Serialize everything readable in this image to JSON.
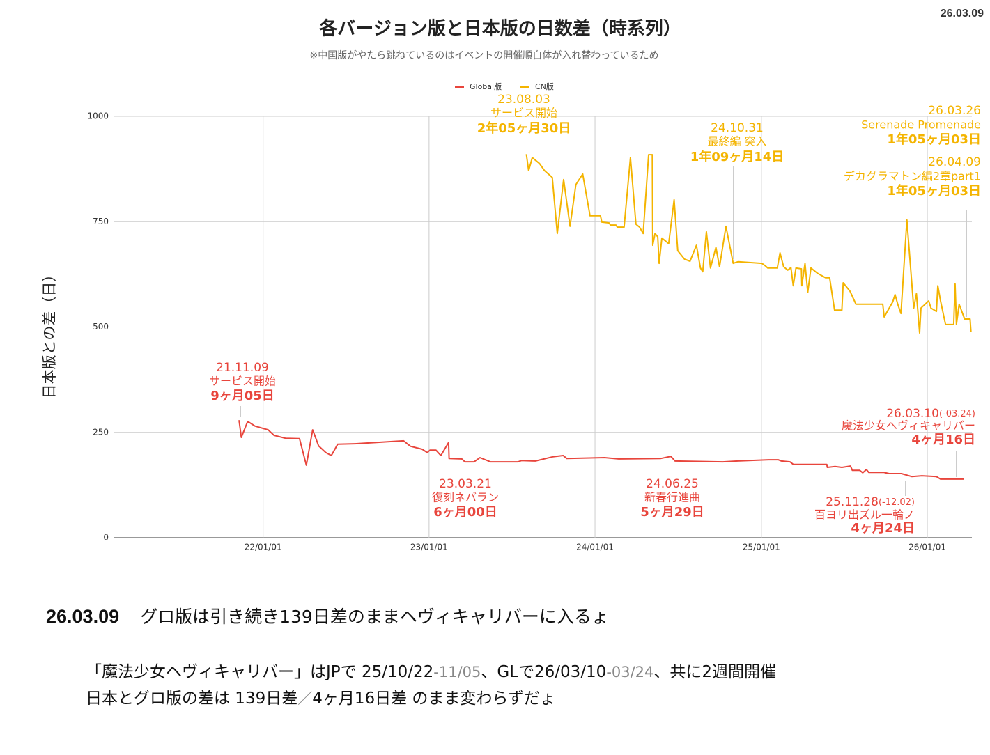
{
  "chart_data": {
    "type": "line",
    "title": "各バージョン版と日本版の日数差（時系列）",
    "subtitle": "※中国版がやたら跳ねているのはイベントの開催順自体が入れ替わっているため",
    "y_label": "日本版との差（日）",
    "stamp": "26.03.09",
    "ylim": [
      0,
      1000
    ],
    "yticks": [
      0,
      250,
      500,
      750,
      1000
    ],
    "xlim": [
      "2021-02-06",
      "2026-04-09"
    ],
    "xticks": [
      {
        "value": "2022-01-01",
        "label": "22/01/01"
      },
      {
        "value": "2023-01-01",
        "label": "23/01/01"
      },
      {
        "value": "2024-01-01",
        "label": "24/01/01"
      },
      {
        "value": "2025-01-01",
        "label": "25/01/01"
      },
      {
        "value": "2026-01-01",
        "label": "26/01/01"
      }
    ],
    "grid": true,
    "legend": "top",
    "series": [
      {
        "name": "Global版",
        "color": "#e8453c",
        "x": [
          "2021-11-09",
          "2021-11-14",
          "2021-11-28",
          "2021-12-14",
          "2022-01-12",
          "2022-01-25",
          "2022-02-19",
          "2022-03-22",
          "2022-04-06",
          "2022-04-20",
          "2022-05-03",
          "2022-05-19",
          "2022-05-31",
          "2022-06-14",
          "2022-07-22",
          "2022-11-06",
          "2022-11-21",
          "2022-12-17",
          "2022-12-28",
          "2023-01-03",
          "2023-01-16",
          "2023-01-27",
          "2023-02-13",
          "2023-02-14",
          "2023-03-14",
          "2023-03-21",
          "2023-04-10",
          "2023-04-23",
          "2023-05-16",
          "2023-07-16",
          "2023-07-23",
          "2023-08-23",
          "2023-09-30",
          "2023-10-23",
          "2023-10-31",
          "2024-01-22",
          "2024-02-22",
          "2024-05-24",
          "2024-06-16",
          "2024-06-25",
          "2024-10-08",
          "2024-11-10",
          "2025-01-17",
          "2025-02-07",
          "2025-02-14",
          "2025-03-05",
          "2025-03-12",
          "2025-05-25",
          "2025-05-26",
          "2025-06-12",
          "2025-06-27",
          "2025-07-16",
          "2025-07-20",
          "2025-08-05",
          "2025-08-12",
          "2025-08-20",
          "2025-08-25",
          "2025-09-27",
          "2025-10-09",
          "2025-11-05",
          "2025-11-28",
          "2025-12-20",
          "2026-01-21",
          "2026-01-30",
          "2026-03-22"
        ],
        "values": [
          279,
          238,
          276,
          265,
          256,
          243,
          236,
          235,
          172,
          256,
          218,
          202,
          195,
          222,
          223,
          230,
          217,
          210,
          202,
          208,
          208,
          195,
          226,
          188,
          187,
          180,
          180,
          190,
          180,
          180,
          183,
          182,
          192,
          195,
          188,
          190,
          187,
          188,
          193,
          182,
          180,
          182,
          185,
          185,
          182,
          180,
          174,
          174,
          167,
          169,
          167,
          170,
          160,
          160,
          154,
          162,
          155,
          155,
          152,
          152,
          145,
          147,
          145,
          139,
          139
        ]
      },
      {
        "name": "CN版",
        "color": "#f4b400",
        "x": [
          "2023-08-03",
          "2023-08-08",
          "2023-08-16",
          "2023-09-01",
          "2023-09-12",
          "2023-09-29",
          "2023-10-10",
          "2023-10-24",
          "2023-11-07",
          "2023-11-20",
          "2023-12-05",
          "2023-12-21",
          "2024-01-13",
          "2024-01-16",
          "2024-02-01",
          "2024-02-04",
          "2024-02-16",
          "2024-02-19",
          "2024-03-05",
          "2024-03-19",
          "2024-03-31",
          "2024-04-08",
          "2024-04-16",
          "2024-04-28",
          "2024-05-06",
          "2024-05-07",
          "2024-05-12",
          "2024-05-18",
          "2024-05-21",
          "2024-05-27",
          "2024-06-11",
          "2024-06-23",
          "2024-07-01",
          "2024-07-16",
          "2024-07-28",
          "2024-08-11",
          "2024-08-20",
          "2024-08-25",
          "2024-09-02",
          "2024-09-11",
          "2024-09-23",
          "2024-10-01",
          "2024-10-15",
          "2024-10-31",
          "2024-11-11",
          "2025-01-02",
          "2025-01-10",
          "2025-01-15",
          "2025-02-05",
          "2025-02-11",
          "2025-02-19",
          "2025-02-28",
          "2025-03-07",
          "2025-03-12",
          "2025-03-18",
          "2025-03-30",
          "2025-03-31",
          "2025-04-07",
          "2025-04-13",
          "2025-04-20",
          "2025-05-04",
          "2025-05-22",
          "2025-05-31",
          "2025-06-11",
          "2025-06-27",
          "2025-06-30",
          "2025-07-15",
          "2025-07-28",
          "2025-09-25",
          "2025-09-28",
          "2025-10-17",
          "2025-10-22",
          "2025-10-28",
          "2025-11-04",
          "2025-11-17",
          "2025-12-02",
          "2025-12-08",
          "2025-12-15",
          "2025-12-18",
          "2026-01-04",
          "2026-01-09",
          "2026-01-21",
          "2026-01-24",
          "2026-01-30",
          "2026-02-10",
          "2026-02-28",
          "2026-03-03",
          "2026-03-06",
          "2026-03-12",
          "2026-03-24",
          "2026-04-05",
          "2026-04-07"
        ],
        "values": [
          910,
          871,
          902,
          888,
          871,
          855,
          722,
          850,
          739,
          838,
          863,
          764,
          764,
          749,
          747,
          742,
          742,
          737,
          737,
          902,
          744,
          737,
          722,
          909,
          909,
          694,
          722,
          714,
          651,
          711,
          698,
          802,
          681,
          661,
          656,
          694,
          640,
          631,
          726,
          640,
          689,
          643,
          739,
          651,
          655,
          651,
          645,
          640,
          640,
          676,
          643,
          635,
          641,
          598,
          640,
          638,
          598,
          651,
          582,
          640,
          628,
          617,
          617,
          540,
          540,
          605,
          585,
          554,
          554,
          524,
          560,
          577,
          554,
          532,
          754,
          545,
          579,
          486,
          545,
          562,
          545,
          537,
          598,
          562,
          506,
          506,
          602,
          506,
          554,
          519,
          519,
          489
        ]
      }
    ],
    "annotations": [
      {
        "series": 1,
        "date": "23.08.03",
        "event": "サービス開始",
        "gap": "2年05ヶ月30日"
      },
      {
        "series": 1,
        "date": "24.10.31",
        "event": "最終編 突入",
        "gap": "1年09ヶ月14日"
      },
      {
        "series": 1,
        "date": "26.03.26",
        "event": "Serenade Promenade",
        "gap": "1年05ヶ月03日"
      },
      {
        "series": 1,
        "date": "26.04.09",
        "event": "デカグラマトン編2章part1",
        "gap": "1年05ヶ月03日"
      },
      {
        "series": 0,
        "date": "21.11.09",
        "event": "サービス開始",
        "gap": "9ヶ月05日"
      },
      {
        "series": 0,
        "date": "23.03.21",
        "event": "復刻ネバラン",
        "gap": "6ヶ月00日"
      },
      {
        "series": 0,
        "date": "24.06.25",
        "event": "新春行進曲",
        "gap": "5ヶ月29日"
      },
      {
        "series": 0,
        "date": "25.11.28",
        "end": "(-12.02)",
        "event": "百ヨリ出ズル一輪ノ",
        "gap": "4ヶ月24日"
      },
      {
        "series": 0,
        "date": "26.03.10",
        "end": "(-03.24)",
        "event": "魔法少女ヘヴィキャリバー",
        "gap": "4ヶ月16日"
      }
    ]
  },
  "notes": {
    "date": "26.03.09",
    "headline": "グロ版は引き続き139日差のままヘヴィキャリバーに入るょ",
    "lines": [
      [
        {
          "text": "「魔法少女ヘヴィキャリバー」はJPで 25/10/22",
          "muted": false
        },
        {
          "text": "-11/05",
          "muted": true
        },
        {
          "text": "、GLで26/03/10",
          "muted": false
        },
        {
          "text": "-03/24",
          "muted": true
        },
        {
          "text": "、共に2週間開催",
          "muted": false
        }
      ],
      [
        {
          "text": "日本とグロ版の差は 139日差",
          "muted": false
        },
        {
          "text": "／",
          "muted": true
        },
        {
          "text": "4ヶ月16日差 のまま変わらずだょ",
          "muted": false
        }
      ]
    ]
  }
}
